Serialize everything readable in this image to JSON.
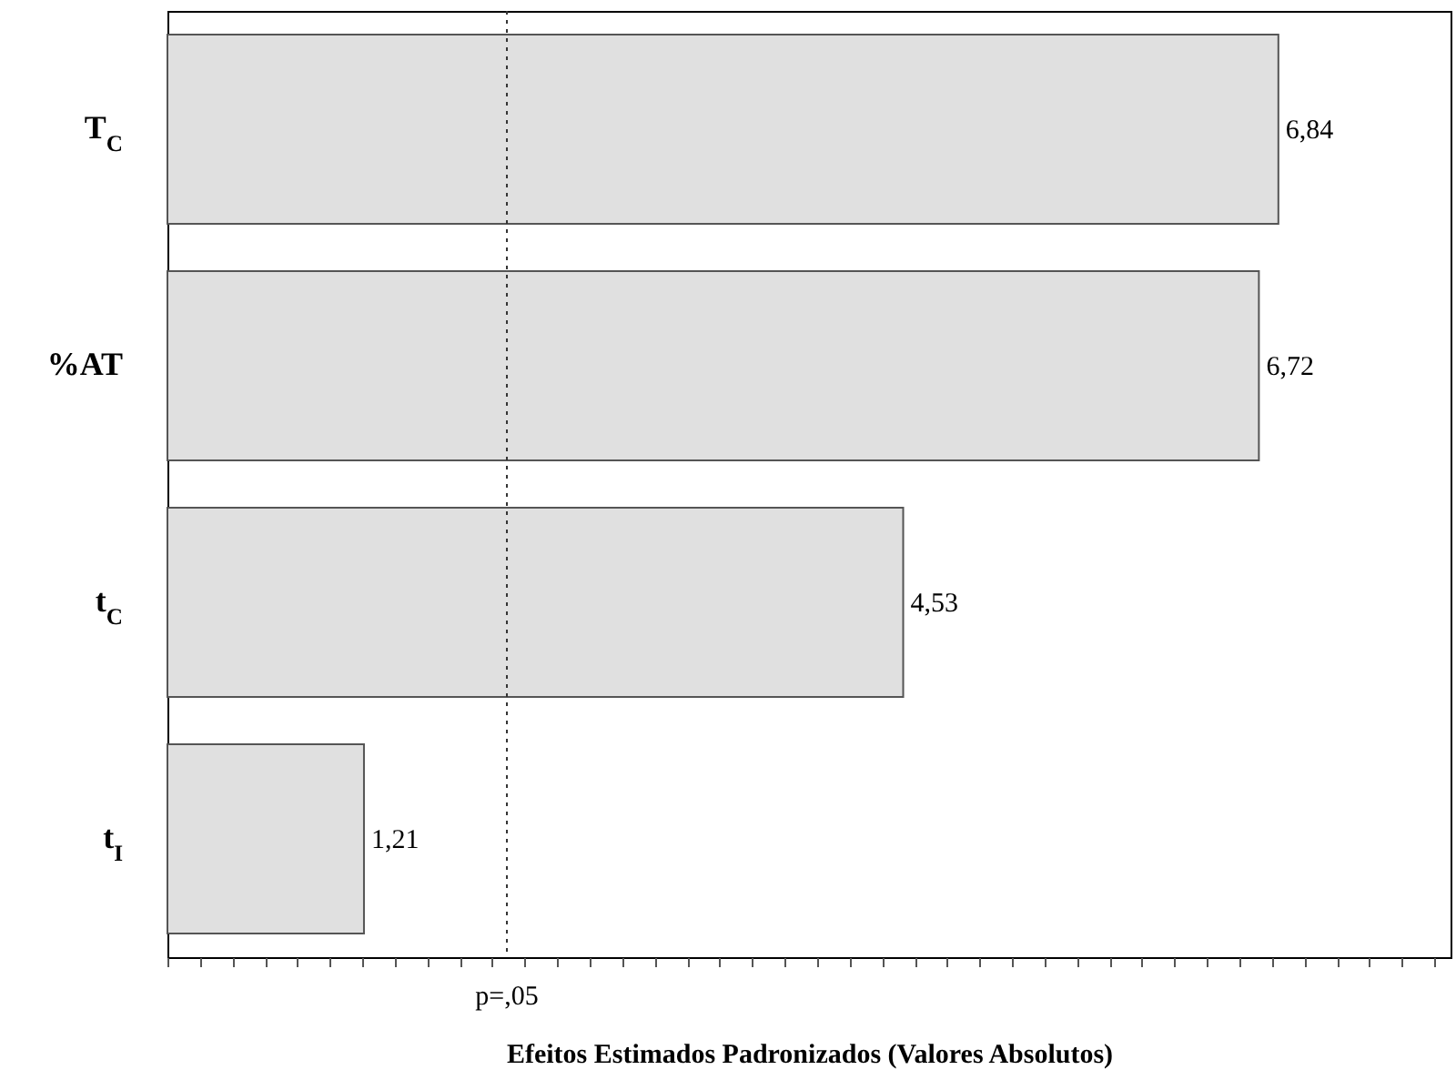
{
  "chart_data": {
    "type": "bar",
    "orientation": "horizontal",
    "xlabel": "Efeitos Estimados Padronizados (Valores Absolutos)",
    "categories": [
      "T$_{C}$",
      "%AT",
      "t$_{C}$",
      "t$_{I}$"
    ],
    "values": [
      6.84,
      6.72,
      4.53,
      1.21
    ],
    "value_labels": [
      "6,84",
      "6,72",
      "4,53",
      "1,21"
    ],
    "color": "#e0e0e0",
    "xlim": [
      0,
      7.9
    ],
    "tick_labels": "y",
    "ref_lines": [
      {
        "axis": "x",
        "value": 2.09,
        "label": "p=,05",
        "line_style": "dotted",
        "color": "#333333"
      }
    ]
  }
}
